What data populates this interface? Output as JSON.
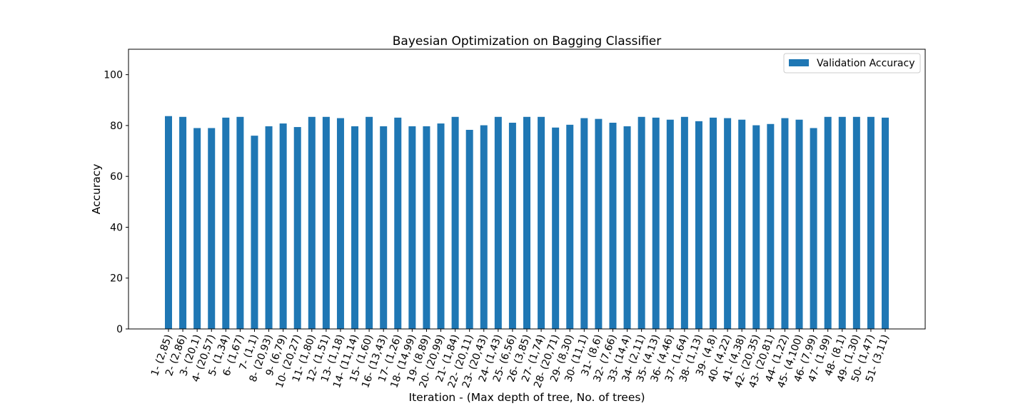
{
  "chart_data": {
    "type": "bar",
    "title": "Bayesian Optimization on Bagging Classifier",
    "xlabel": "Iteration - (Max depth of tree, No. of trees)",
    "ylabel": "Accuracy",
    "ylim": [
      0,
      110
    ],
    "yticks": [
      0,
      20,
      40,
      60,
      80,
      100
    ],
    "grid": false,
    "legend_position": "top-right",
    "categories": [
      "1- (2,85)",
      "2- (2,86)",
      "3- (20,1)",
      "4- (20,57)",
      "5- (1,34)",
      "6- (1,67)",
      "7- (1,1)",
      "8- (20,93)",
      "9- (6,79)",
      "10- (20,27)",
      "11- (1,80)",
      "12- (1,51)",
      "13- (1,18)",
      "14- (11,14)",
      "15- (1,60)",
      "16- (13,43)",
      "17- (1,26)",
      "18- (14,99)",
      "19- (8,89)",
      "20- (20,99)",
      "21- (1,84)",
      "22- (20,11)",
      "23- (20,43)",
      "24- (1,43)",
      "25- (6,56)",
      "26- (3,85)",
      "27- (1,74)",
      "28- (20,71)",
      "29- (8,30)",
      "30- (11,1)",
      "31- (8,6)",
      "32- (7,66)",
      "33- (14,4)",
      "34- (2,11)",
      "35- (4,13)",
      "36- (4,46)",
      "37- (1,64)",
      "38- (1,13)",
      "39- (4,8)",
      "40- (4,22)",
      "41- (4,38)",
      "42- (20,35)",
      "43- (20,81)",
      "44- (1,22)",
      "45- (4,100)",
      "46- (7,99)",
      "47- (1,99)",
      "48- (8,1)",
      "49- (1,30)",
      "50- (1,47)",
      "51- (3,11)"
    ],
    "series": [
      {
        "name": "Validation Accuracy",
        "color": "#1f77b4",
        "values": [
          83.7,
          83.4,
          79.0,
          79.0,
          83.1,
          83.4,
          76.0,
          79.7,
          80.8,
          79.4,
          83.4,
          83.4,
          82.9,
          79.7,
          83.4,
          79.7,
          83.1,
          79.7,
          79.7,
          80.8,
          83.4,
          78.3,
          80.1,
          83.4,
          81.1,
          83.4,
          83.4,
          79.2,
          80.3,
          82.9,
          82.6,
          81.1,
          79.7,
          83.4,
          83.1,
          82.3,
          83.4,
          81.7,
          83.1,
          82.9,
          82.3,
          80.1,
          80.6,
          82.9,
          82.3,
          79.0,
          83.4,
          83.4,
          83.4,
          83.4,
          83.1
        ]
      }
    ]
  }
}
